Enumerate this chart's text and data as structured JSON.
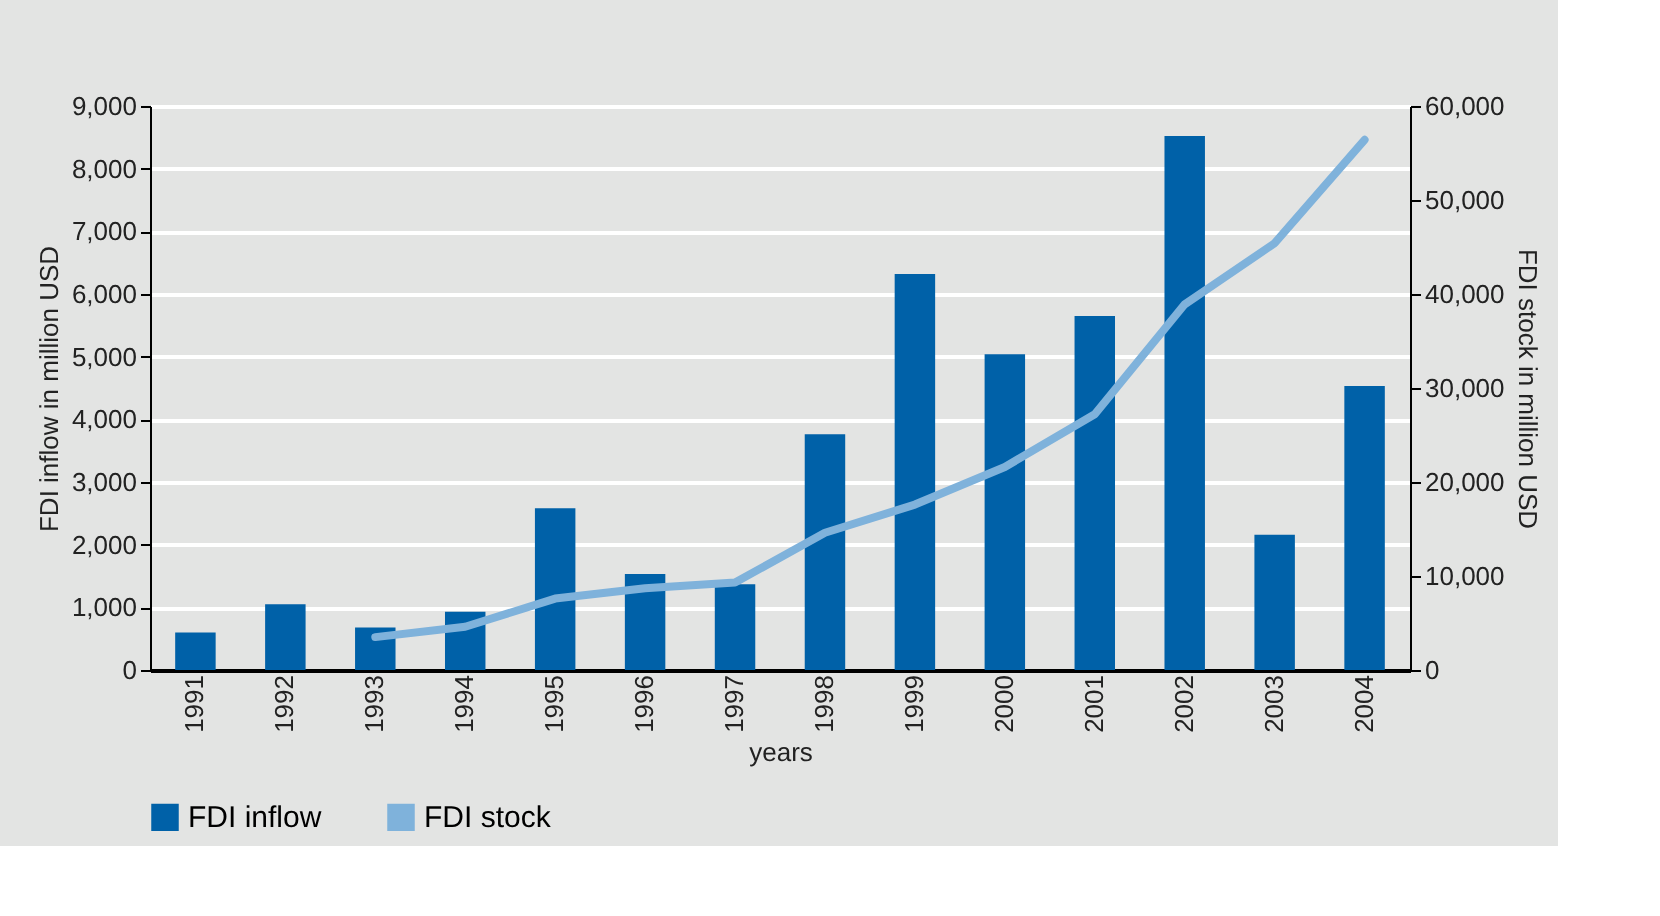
{
  "chart_data": {
    "type": "bar",
    "categories": [
      "1991",
      "1992",
      "1993",
      "1994",
      "1995",
      "1996",
      "1997",
      "1998",
      "1999",
      "2000",
      "2001",
      "2002",
      "2003",
      "2004"
    ],
    "series": [
      {
        "name": "FDI inflow",
        "color": "#0061a8",
        "values": [
          600,
          1050,
          680,
          930,
          2580,
          1530,
          1370,
          3760,
          6320,
          5040,
          5650,
          8520,
          2160,
          4530
        ]
      },
      {
        "name": "FDI stock",
        "type": "line",
        "axis": "y2",
        "color": "#7fb2db",
        "values": [
          null,
          null,
          3500,
          4600,
          7600,
          8700,
          9300,
          14600,
          17600,
          21600,
          27200,
          38900,
          45400,
          56400
        ]
      }
    ],
    "xlabel": "years",
    "ylabel": "FDI inflow in million USD",
    "y2label": "FDI stock in million USD",
    "ylim": [
      0,
      9000
    ],
    "yticks": [
      0,
      {
        "value": 1000,
        "label": "1,000"
      },
      {
        "value": 2000,
        "label": "2,000"
      },
      {
        "value": 3000,
        "label": "3,000"
      },
      {
        "value": 4000,
        "label": "4,000"
      },
      {
        "value": 5000,
        "label": "5,000"
      },
      {
        "value": 6000,
        "label": "6,000"
      },
      {
        "value": 7000,
        "label": "7,000"
      },
      {
        "value": 8000,
        "label": "8,000"
      },
      {
        "value": 9000,
        "label": "9,000"
      }
    ],
    "y2lim": [
      0,
      60000
    ],
    "y2ticks": [
      0,
      {
        "value": 10000,
        "label": "10,000"
      },
      {
        "value": 20000,
        "label": "20,000"
      },
      {
        "value": 30000,
        "label": "30,000"
      },
      {
        "value": 40000,
        "label": "40,000"
      },
      {
        "value": 50000,
        "label": "50,000"
      },
      {
        "value": 60000,
        "label": "60,000"
      }
    ],
    "grid": "y",
    "legend": "bottom"
  }
}
